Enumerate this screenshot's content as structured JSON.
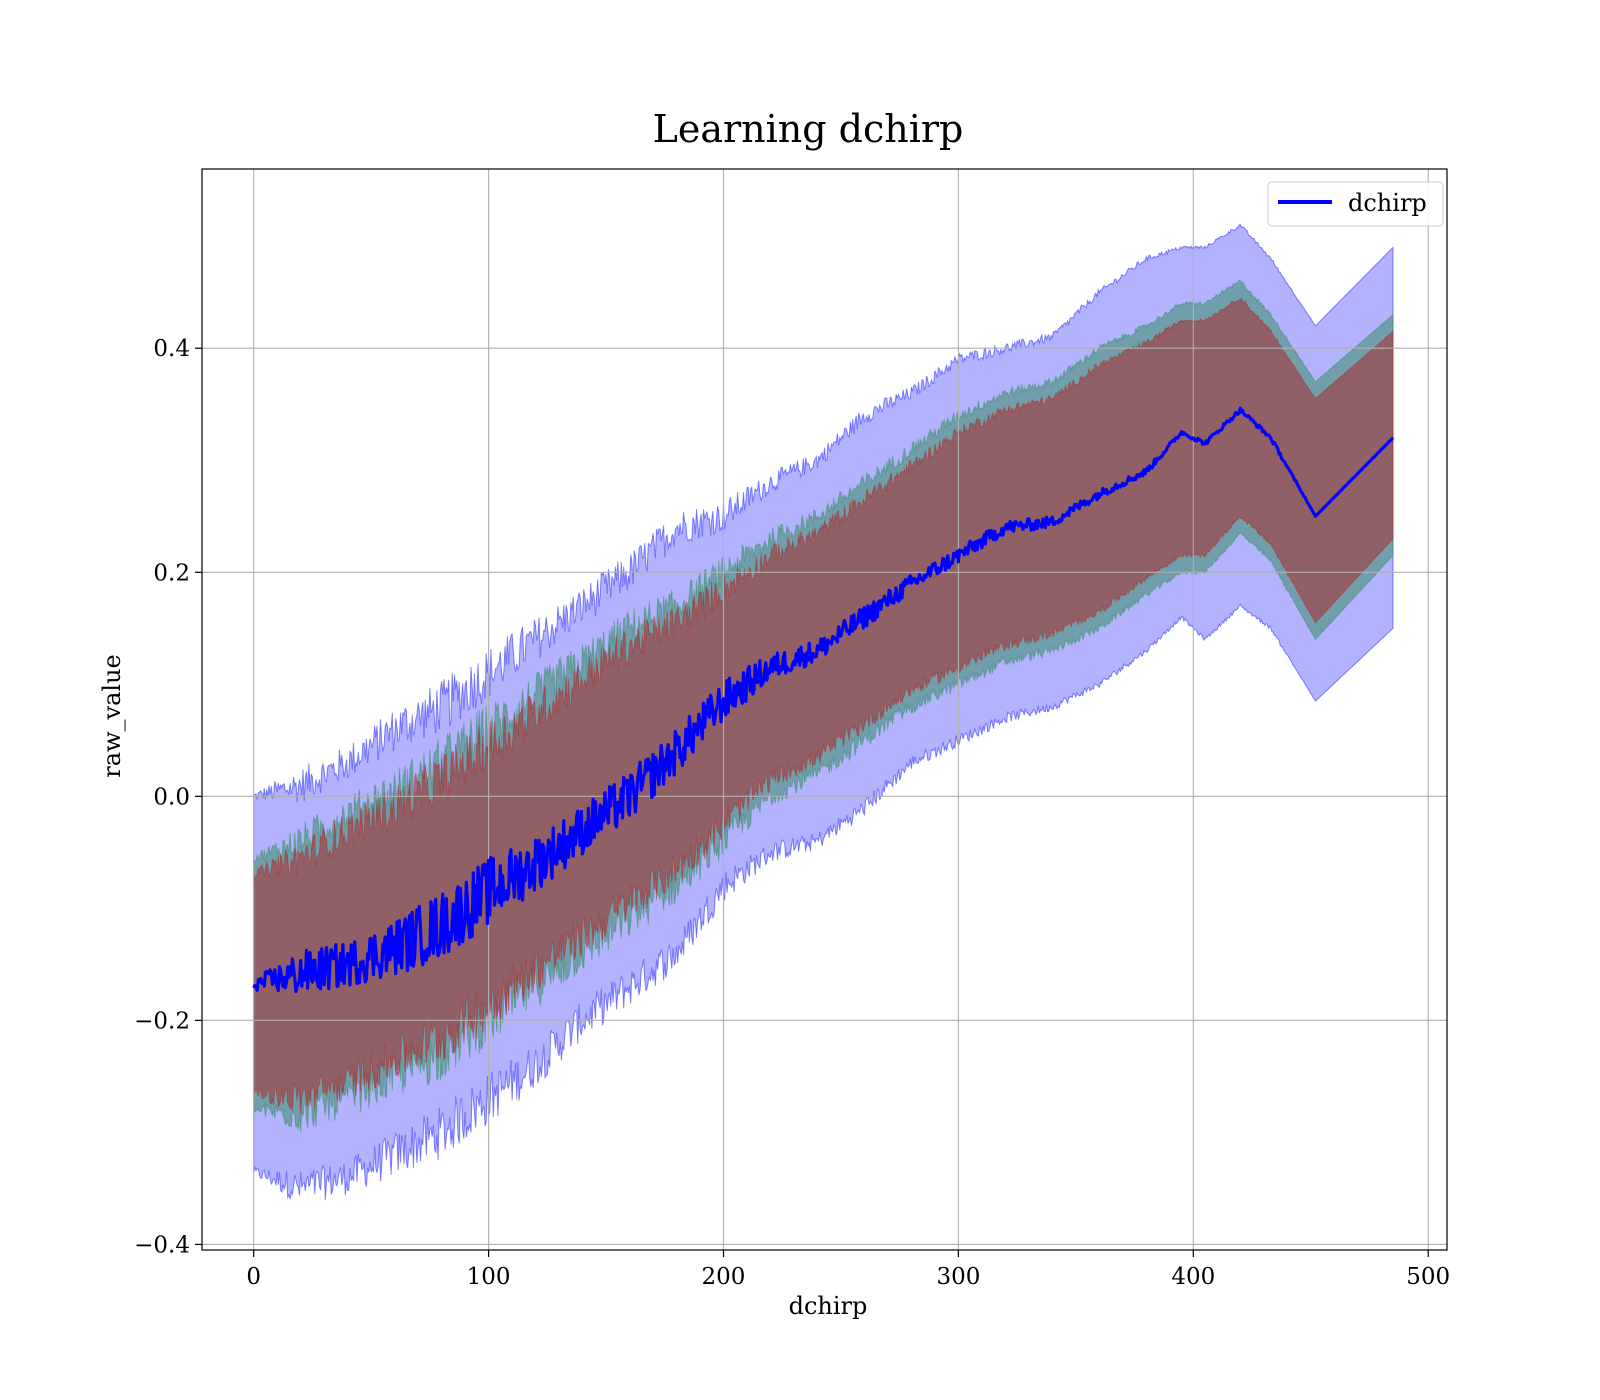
{
  "chart_data": {
    "type": "line",
    "title": "Learning dchirp",
    "xlabel": "dchirp",
    "ylabel": "raw_value",
    "xlim": [
      -22,
      508
    ],
    "ylim": [
      -0.405,
      0.56
    ],
    "x_ticks": [
      0,
      100,
      200,
      300,
      400,
      500
    ],
    "x_tick_labels": [
      "0",
      "100",
      "200",
      "300",
      "400",
      "500"
    ],
    "y_ticks": [
      -0.4,
      -0.2,
      0.0,
      0.2,
      0.4
    ],
    "y_tick_labels": [
      "−0.4",
      "−0.2",
      "0.0",
      "0.2",
      "0.4"
    ],
    "grid": true,
    "legend": {
      "placement": "top-right",
      "entries": [
        {
          "label": "dchirp",
          "color": "#0000ff"
        }
      ]
    },
    "x": [
      0,
      20,
      40,
      60,
      80,
      100,
      120,
      140,
      160,
      180,
      200,
      220,
      240,
      260,
      280,
      300,
      320,
      340,
      360,
      380,
      395,
      405,
      420,
      433,
      452,
      485
    ],
    "series": [
      {
        "name": "dchirp",
        "color": "#0000ff",
        "values": [
          -0.168,
          -0.158,
          -0.15,
          -0.135,
          -0.115,
          -0.085,
          -0.06,
          -0.03,
          0.0,
          0.04,
          0.085,
          0.115,
          0.13,
          0.16,
          0.19,
          0.215,
          0.24,
          0.245,
          0.27,
          0.29,
          0.325,
          0.315,
          0.345,
          0.32,
          0.25,
          0.32
        ],
        "noise": [
          0.005,
          0.02,
          0.02,
          0.025,
          0.03,
          0.03,
          0.025,
          0.022,
          0.022,
          0.02,
          0.018,
          0.012,
          0.01,
          0.01,
          0.008,
          0.007,
          0.006,
          0.005,
          0.004,
          0.003,
          0.002,
          0.002,
          0.002,
          0.002,
          0.0,
          0.0
        ]
      }
    ],
    "bands": [
      {
        "name": "outer",
        "color": "#0000ff",
        "opacity": 0.3,
        "upper": [
          0.0,
          0.01,
          0.03,
          0.06,
          0.08,
          0.11,
          0.14,
          0.17,
          0.2,
          0.24,
          0.25,
          0.28,
          0.3,
          0.34,
          0.36,
          0.39,
          0.4,
          0.41,
          0.45,
          0.48,
          0.49,
          0.49,
          0.51,
          0.48,
          0.42,
          0.49
        ],
        "lower": [
          -0.335,
          -0.35,
          -0.34,
          -0.32,
          -0.3,
          -0.27,
          -0.24,
          -0.2,
          -0.17,
          -0.14,
          -0.08,
          -0.05,
          -0.04,
          -0.01,
          0.03,
          0.05,
          0.07,
          0.08,
          0.1,
          0.13,
          0.16,
          0.14,
          0.17,
          0.15,
          0.085,
          0.15
        ]
      },
      {
        "name": "middle",
        "color": "#2e8b57",
        "opacity": 0.5,
        "upper": [
          -0.055,
          -0.04,
          -0.015,
          0.005,
          0.03,
          0.06,
          0.09,
          0.12,
          0.15,
          0.17,
          0.2,
          0.23,
          0.25,
          0.28,
          0.31,
          0.34,
          0.36,
          0.37,
          0.4,
          0.42,
          0.44,
          0.44,
          0.46,
          0.43,
          0.37,
          0.43
        ],
        "lower": [
          -0.28,
          -0.285,
          -0.27,
          -0.25,
          -0.23,
          -0.2,
          -0.17,
          -0.14,
          -0.11,
          -0.08,
          -0.04,
          0.0,
          0.02,
          0.05,
          0.08,
          0.1,
          0.12,
          0.13,
          0.15,
          0.18,
          0.2,
          0.2,
          0.235,
          0.21,
          0.14,
          0.215
        ]
      },
      {
        "name": "inner",
        "color": "#b22222",
        "opacity": 0.5,
        "upper": [
          -0.07,
          -0.055,
          -0.03,
          -0.01,
          0.015,
          0.045,
          0.075,
          0.105,
          0.135,
          0.155,
          0.185,
          0.215,
          0.235,
          0.265,
          0.295,
          0.325,
          0.345,
          0.355,
          0.385,
          0.405,
          0.425,
          0.425,
          0.445,
          0.415,
          0.355,
          0.415
        ],
        "lower": [
          -0.265,
          -0.27,
          -0.255,
          -0.235,
          -0.215,
          -0.185,
          -0.155,
          -0.125,
          -0.095,
          -0.065,
          -0.025,
          0.015,
          0.035,
          0.065,
          0.095,
          0.115,
          0.135,
          0.145,
          0.165,
          0.195,
          0.215,
          0.215,
          0.25,
          0.225,
          0.155,
          0.23
        ]
      }
    ]
  }
}
